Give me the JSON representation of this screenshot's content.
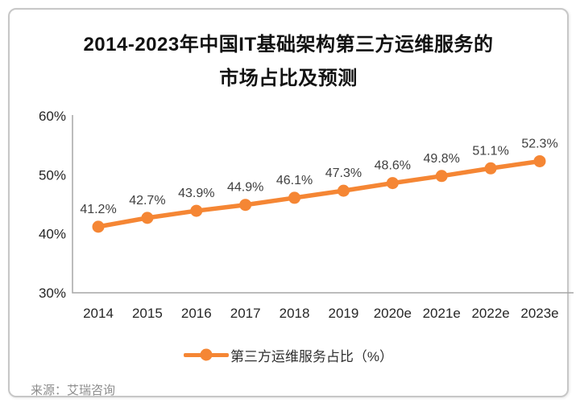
{
  "card": {
    "title_line1": "2014-2023年中国IT基础架构第三方运维服务的",
    "title_line2": "市场占比及预测",
    "source": "来源：艾瑞咨询"
  },
  "chart_data": {
    "type": "line",
    "title": "2014-2023年中国IT基础架构第三方运维服务的市场占比及预测",
    "categories": [
      "2014",
      "2015",
      "2016",
      "2017",
      "2018",
      "2019",
      "2020e",
      "2021e",
      "2022e",
      "2023e"
    ],
    "series": [
      {
        "name": "第三方运维服务占比（%）",
        "values": [
          41.2,
          42.7,
          43.9,
          44.9,
          46.1,
          47.3,
          48.6,
          49.8,
          51.1,
          52.3
        ]
      }
    ],
    "data_labels": [
      "41.2%",
      "42.7%",
      "43.9%",
      "44.9%",
      "46.1%",
      "47.3%",
      "48.6%",
      "49.8%",
      "51.1%",
      "52.3%"
    ],
    "ylim": [
      30,
      60
    ],
    "yticks": [
      60,
      50,
      40,
      30
    ],
    "ytick_suffix": "%",
    "grid": false,
    "legend_position": "bottom",
    "colors": {
      "line": "#F58634",
      "marker": "#F58634",
      "data_label": "#404040",
      "axis": "#A6A6A6",
      "tick_label": "#262626",
      "title": "#121212",
      "source": "#8C8C8C"
    }
  }
}
